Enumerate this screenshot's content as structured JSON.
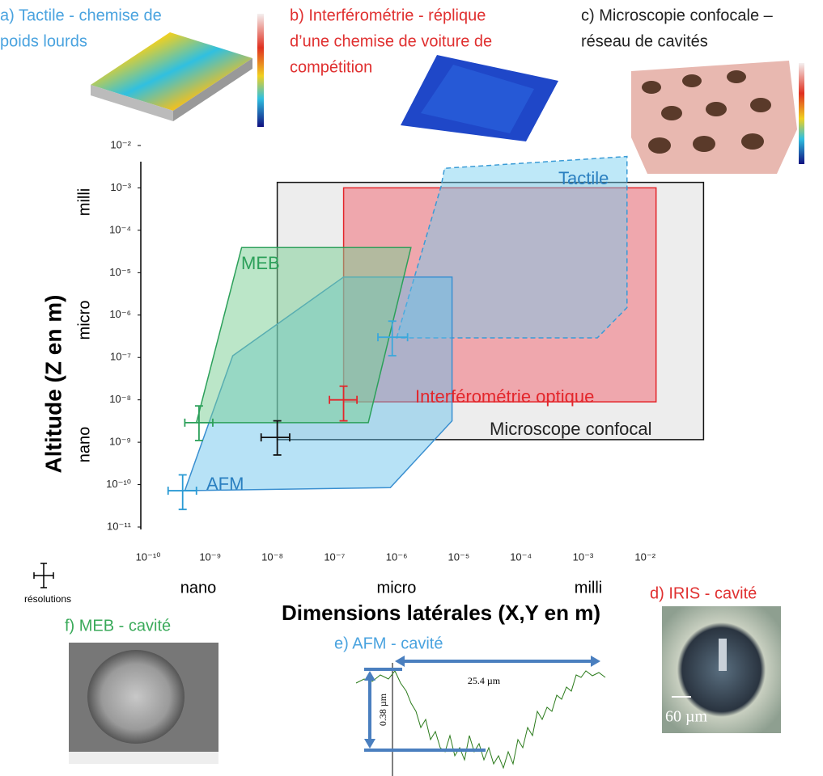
{
  "chart_data": {
    "type": "area",
    "x_label": "Dimensions latérales (X,Y en m)",
    "y_label": "Altitude  (Z en m)",
    "x_scale_labels": [
      "nano",
      "micro",
      "milli"
    ],
    "y_scale_labels": [
      "milli",
      "micro",
      "nano"
    ],
    "log_x": true,
    "log_y": true,
    "xlim": [
      1e-10,
      0.1
    ],
    "ylim": [
      1e-11,
      0.01
    ],
    "xticks": [
      {
        "value": 1e-10,
        "label": "10⁻¹⁰"
      },
      {
        "value": 1e-09,
        "label": "10⁻⁹"
      },
      {
        "value": 1e-08,
        "label": "10⁻⁸"
      },
      {
        "value": 1e-07,
        "label": "10⁻⁷"
      },
      {
        "value": 1e-06,
        "label": "10⁻⁶"
      },
      {
        "value": 1e-05,
        "label": "10⁻⁵"
      },
      {
        "value": 0.0001,
        "label": "10⁻⁴"
      },
      {
        "value": 0.001,
        "label": "10⁻³"
      },
      {
        "value": 0.01,
        "label": "10⁻²"
      }
    ],
    "yticks": [
      {
        "value": 1e-11,
        "label": "10⁻¹¹"
      },
      {
        "value": 1e-10,
        "label": "10⁻¹⁰"
      },
      {
        "value": 1e-09,
        "label": "10⁻⁹"
      },
      {
        "value": 1e-08,
        "label": "10⁻⁸"
      },
      {
        "value": 1e-07,
        "label": "10⁻⁷"
      },
      {
        "value": 1e-06,
        "label": "10⁻⁶"
      },
      {
        "value": 1e-05,
        "label": "10⁻⁵"
      },
      {
        "value": 0.0001,
        "label": "10⁻⁴"
      },
      {
        "value": 0.001,
        "label": "10⁻³"
      },
      {
        "value": 0.01,
        "label": "10⁻²"
      }
    ],
    "series": [
      {
        "name": "Microscope confocal",
        "color": "#111111",
        "fill": "rgba(225,225,225,0.6)",
        "line_style": "solid",
        "x": [
          1.2e-08,
          0.087,
          0.087,
          1.2e-08
        ],
        "values": [
          0.00135,
          0.00135,
          1.15e-09,
          1.15e-09
        ]
      },
      {
        "name": "Interférométrie optique",
        "color": "#e3262b",
        "fill": "rgba(240,110,120,0.55)",
        "line_style": "solid",
        "x": [
          1.4e-07,
          0.015,
          0.015,
          1.4e-07
        ],
        "values": [
          0.001,
          0.001,
          9e-09,
          9e-09
        ]
      },
      {
        "name": "Tactile",
        "color": "#3a9bd6",
        "fill": "rgba(110,205,240,0.45)",
        "line_style": "dashed",
        "x": [
          1e-06,
          5.2e-06,
          5.9e-06,
          0.0051,
          0.0051,
          0.0017
        ],
        "values": [
          2.9e-07,
          0.0011,
          0.0029,
          0.0055,
          1.5e-06,
          2.9e-07
        ]
      },
      {
        "name": "AFM",
        "color": "#3a8fd0",
        "fill": "rgba(95,190,235,0.45)",
        "line_style": "solid",
        "x": [
          1.4e-07,
          7.8e-06,
          7.8e-06,
          7.9e-07,
          3.9e-10,
          2.3e-09
        ],
        "values": [
          7.9e-06,
          7.9e-06,
          3.2e-09,
          8.5e-11,
          7.2e-11,
          1.1e-07
        ]
      },
      {
        "name": "MEB",
        "color": "#2ca05a",
        "fill": "rgba(120,205,145,0.5)",
        "line_style": "solid",
        "x": [
          3.2e-09,
          1.7e-06,
          3.5e-07,
          6e-10
        ],
        "values": [
          3.9e-05,
          3.9e-05,
          2.9e-09,
          2.9e-09
        ]
      }
    ],
    "resolution_legend": "résolutions",
    "resolutions": [
      {
        "color": "#111111",
        "x": 1.2e-08,
        "y": 1.3e-09,
        "x_range": [
          6.6e-09,
          1.9e-08
        ],
        "y_range": [
          5e-10,
          3.2e-09
        ]
      },
      {
        "color": "#e3262b",
        "x": 1.4e-07,
        "y": 1e-08,
        "x_range": [
          8.3e-08,
          2.3e-07
        ],
        "y_range": [
          3.2e-09,
          2.1e-08
        ]
      },
      {
        "color": "#3aa8dc",
        "x": 8.5e-07,
        "y": 3e-07,
        "x_range": [
          5e-07,
          1.5e-06
        ],
        "y_range": [
          1.1e-07,
          7.2e-07
        ]
      },
      {
        "color": "#2ca05a",
        "x": 6.6e-10,
        "y": 2.9e-09,
        "x_range": [
          3.9e-10,
          1.1e-09
        ],
        "y_range": [
          1.1e-09,
          7.2e-09
        ]
      },
      {
        "color": "#2a9ad4",
        "x": 3.6e-10,
        "y": 7.2e-11,
        "x_range": [
          2.1e-10,
          6e-10
        ],
        "y_range": [
          2.6e-11,
          1.7e-10
        ]
      }
    ]
  },
  "panels": {
    "a": {
      "title": [
        "a) Tactile - chemise de",
        "poids lourds"
      ]
    },
    "b": {
      "title": [
        "b) Interférométrie - réplique",
        "d’une chemise de voiture de",
        "compétition"
      ]
    },
    "c": {
      "title": [
        "c) Microscopie confocale –",
        "réseau de cavités"
      ]
    },
    "d": {
      "title": "d) IRIS - cavité",
      "scale": "60 µm"
    },
    "e": {
      "title": "e) AFM - cavité",
      "width": "25.4 µm",
      "depth": "0.38 µm"
    },
    "f": {
      "title": "f) MEB  - cavité"
    }
  }
}
